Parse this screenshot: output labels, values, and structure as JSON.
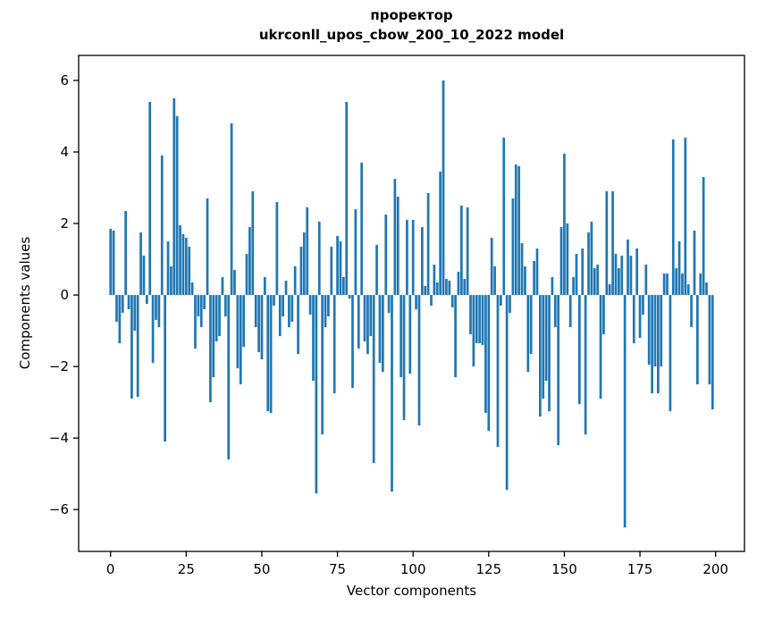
{
  "figure": {
    "title_line1": "проректор",
    "title_line2": "ukrconll_upos_cbow_200_10_2022 model",
    "xlabel": "Vector components",
    "ylabel": "Components values"
  },
  "chart_data": {
    "type": "bar",
    "title": "проректор\nukrconll_upos_cbow_200_10_2022 model",
    "xlabel": "Vector components",
    "ylabel": "Components values",
    "bar_color": "#1f77b4",
    "axis_color": "#000000",
    "background_color": "#ffffff",
    "grid": false,
    "legend": null,
    "xlim": [
      -10.55,
      209.55
    ],
    "ylim": [
      -7.17,
      6.7
    ],
    "x_ticks": [
      0,
      25,
      50,
      75,
      100,
      125,
      150,
      175,
      200
    ],
    "y_ticks": [
      6,
      4,
      2,
      0,
      -2,
      -4,
      -6
    ],
    "bar_width_units": 0.8,
    "x_start_index": 0,
    "values": [
      1.85,
      1.8,
      -0.75,
      -1.35,
      -0.5,
      2.35,
      -0.4,
      -2.9,
      -1.0,
      -2.85,
      1.75,
      1.1,
      -0.25,
      5.4,
      -1.9,
      -0.7,
      -0.9,
      3.9,
      -4.1,
      1.5,
      0.8,
      5.5,
      5.0,
      1.95,
      1.7,
      1.6,
      1.35,
      0.35,
      -1.5,
      -0.6,
      -0.9,
      -0.4,
      2.7,
      -3.0,
      -2.3,
      -1.3,
      -1.15,
      0.5,
      -0.6,
      -4.6,
      4.8,
      0.7,
      -2.05,
      -2.5,
      -1.45,
      1.15,
      1.9,
      2.9,
      -0.9,
      -1.6,
      -1.8,
      0.5,
      -3.25,
      -3.3,
      -0.3,
      2.6,
      -1.15,
      -0.6,
      0.4,
      -0.9,
      -0.75,
      0.8,
      -1.65,
      1.35,
      1.75,
      2.45,
      -0.55,
      -2.4,
      -5.55,
      2.05,
      -3.9,
      -0.9,
      -0.6,
      1.35,
      -2.75,
      1.65,
      1.5,
      0.5,
      5.4,
      -0.1,
      -2.6,
      2.4,
      -1.5,
      3.7,
      -1.3,
      -1.65,
      -1.15,
      -4.7,
      1.4,
      -1.9,
      -2.15,
      2.25,
      -0.5,
      -5.5,
      3.25,
      2.75,
      -2.3,
      -3.5,
      2.1,
      -2.2,
      2.1,
      -0.4,
      -3.65,
      1.9,
      0.25,
      2.85,
      -0.3,
      0.85,
      0.35,
      3.45,
      6.0,
      0.45,
      0.4,
      -0.35,
      -2.3,
      0.65,
      2.5,
      0.45,
      2.45,
      -1.1,
      -2.0,
      -1.35,
      -1.35,
      -1.4,
      -3.3,
      -3.8,
      1.6,
      0.8,
      -4.25,
      -0.3,
      4.4,
      -5.45,
      -0.5,
      2.7,
      3.65,
      3.6,
      1.45,
      0.8,
      -2.15,
      -1.65,
      0.95,
      1.3,
      -3.4,
      -2.9,
      -2.4,
      -3.25,
      0.5,
      -0.9,
      -4.2,
      1.9,
      3.95,
      2.0,
      -0.9,
      0.5,
      1.15,
      -3.05,
      1.3,
      -3.9,
      1.75,
      2.05,
      0.75,
      0.85,
      -2.9,
      -1.1,
      2.9,
      0.3,
      2.9,
      1.15,
      0.75,
      1.1,
      -6.5,
      1.55,
      1.1,
      -1.35,
      1.3,
      -1.2,
      -0.55,
      0.85,
      -1.95,
      -2.75,
      -2.0,
      -2.75,
      -2.0,
      0.6,
      0.6,
      -3.25,
      4.35,
      0.75,
      1.5,
      0.6,
      4.4,
      0.3,
      -0.9,
      1.8,
      -2.5,
      0.6,
      3.3,
      0.35,
      -2.5,
      -3.2
    ]
  }
}
